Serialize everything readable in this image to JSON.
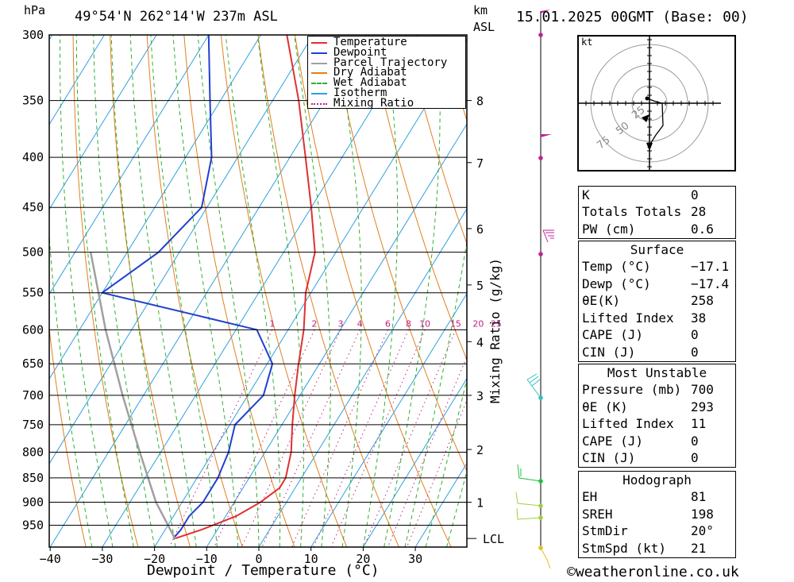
{
  "header": {
    "left_unit": "hPa",
    "location": "49°54'N  262°14'W  237m  ASL",
    "km_unit": "km",
    "asl_unit": "ASL",
    "datetime": "15.01.2025  00GMT  (Base: 00)"
  },
  "chart_data": {
    "type": "skew-T log-P",
    "xlabel": "Dewpoint / Temperature (°C)",
    "ylabel": "hPa",
    "right_axis_label": "km ASL",
    "mixing_ratio_label": "Mixing Ratio (g/kg)",
    "xlim": [
      -40,
      40
    ],
    "ylim_hpa": [
      1000,
      300
    ],
    "pressure_levels": [
      300,
      350,
      400,
      450,
      500,
      550,
      600,
      650,
      700,
      750,
      800,
      850,
      900,
      950
    ],
    "x_ticks": [
      -40,
      -30,
      -20,
      -10,
      0,
      10,
      20,
      30
    ],
    "x_tick_labels": [
      "−40",
      "−30",
      "−20",
      "−10",
      "0",
      "10",
      "20",
      "30"
    ],
    "km_ticks": [
      {
        "km": "8",
        "p": 350
      },
      {
        "km": "7",
        "p": 405
      },
      {
        "km": "6",
        "p": 473
      },
      {
        "km": "5",
        "p": 540
      },
      {
        "km": "4",
        "p": 617
      },
      {
        "km": "3",
        "p": 700
      },
      {
        "km": "2",
        "p": 795
      },
      {
        "km": "1",
        "p": 900
      }
    ],
    "lcl_label": "LCL",
    "lcl_pressure": 980,
    "mixing_ratio_values": [
      "1",
      "2",
      "3",
      "4",
      "6",
      "8",
      "10",
      "15",
      "20",
      "25"
    ],
    "legend": [
      {
        "name": "Temperature",
        "color": "#e03030",
        "style": "solid"
      },
      {
        "name": "Dewpoint",
        "color": "#2040d0",
        "style": "solid"
      },
      {
        "name": "Parcel Trajectory",
        "color": "#a0a0a0",
        "style": "solid"
      },
      {
        "name": "Dry Adiabat",
        "color": "#e08020",
        "style": "solid"
      },
      {
        "name": "Wet Adiabat",
        "color": "#30b030",
        "style": "dashed"
      },
      {
        "name": "Isotherm",
        "color": "#30a0e0",
        "style": "solid"
      },
      {
        "name": "Mixing Ratio",
        "color": "#c02080",
        "style": "dotted"
      }
    ],
    "series": [
      {
        "name": "Temperature",
        "points": [
          [
            980,
            -17.1
          ],
          [
            960,
            -13
          ],
          [
            930,
            -8
          ],
          [
            900,
            -5
          ],
          [
            870,
            -3
          ],
          [
            850,
            -3
          ],
          [
            800,
            -5
          ],
          [
            750,
            -8
          ],
          [
            700,
            -11
          ],
          [
            650,
            -14
          ],
          [
            600,
            -17
          ],
          [
            550,
            -21
          ],
          [
            500,
            -24
          ],
          [
            450,
            -30
          ],
          [
            400,
            -37
          ],
          [
            350,
            -45
          ],
          [
            300,
            -55
          ]
        ]
      },
      {
        "name": "Dewpoint",
        "points": [
          [
            980,
            -17.4
          ],
          [
            960,
            -17
          ],
          [
            930,
            -17
          ],
          [
            900,
            -16
          ],
          [
            850,
            -16
          ],
          [
            800,
            -17
          ],
          [
            750,
            -19
          ],
          [
            700,
            -17
          ],
          [
            650,
            -19
          ],
          [
            600,
            -26
          ],
          [
            550,
            -60
          ],
          [
            500,
            -54
          ],
          [
            450,
            -51
          ],
          [
            400,
            -55
          ],
          [
            350,
            -62
          ],
          [
            300,
            -70
          ]
        ]
      },
      {
        "name": "Parcel Trajectory",
        "points": [
          [
            980,
            -17.1
          ],
          [
            900,
            -25
          ],
          [
            800,
            -34
          ],
          [
            700,
            -44
          ],
          [
            600,
            -55
          ],
          [
            500,
            -67
          ]
        ]
      }
    ]
  },
  "hodograph": {
    "unit_label": "kt",
    "ring_labels": [
      "25",
      "50",
      "75"
    ]
  },
  "indices": {
    "k_label": "K",
    "k_value": "0",
    "tt_label": "Totals Totals",
    "tt_value": "28",
    "pw_label": "PW (cm)",
    "pw_value": "0.6"
  },
  "surface": {
    "title": "Surface",
    "temp_label": "Temp (°C)",
    "temp_value": "−17.1",
    "dewp_label": "Dewp (°C)",
    "dewp_value": "−17.4",
    "thetae_label": "θE(K)",
    "thetae_value": "258",
    "li_label": "Lifted Index",
    "li_value": "38",
    "cape_label": "CAPE (J)",
    "cape_value": "0",
    "cin_label": "CIN (J)",
    "cin_value": "0"
  },
  "most_unstable": {
    "title": "Most Unstable",
    "pressure_label": "Pressure (mb)",
    "pressure_value": "700",
    "thetae_label": "θE (K)",
    "thetae_value": "293",
    "li_label": "Lifted Index",
    "li_value": "11",
    "cape_label": "CAPE (J)",
    "cape_value": "0",
    "cin_label": "CIN (J)",
    "cin_value": "0"
  },
  "hodograph_stats": {
    "title": "Hodograph",
    "eh_label": "EH",
    "eh_value": "81",
    "sreh_label": "SREH",
    "sreh_value": "198",
    "stmdir_label": "StmDir",
    "stmdir_value": "20°",
    "stmspd_label": "StmSpd (kt)",
    "stmspd_value": "21"
  },
  "footer": {
    "credit": "weatheronline.co.uk"
  }
}
